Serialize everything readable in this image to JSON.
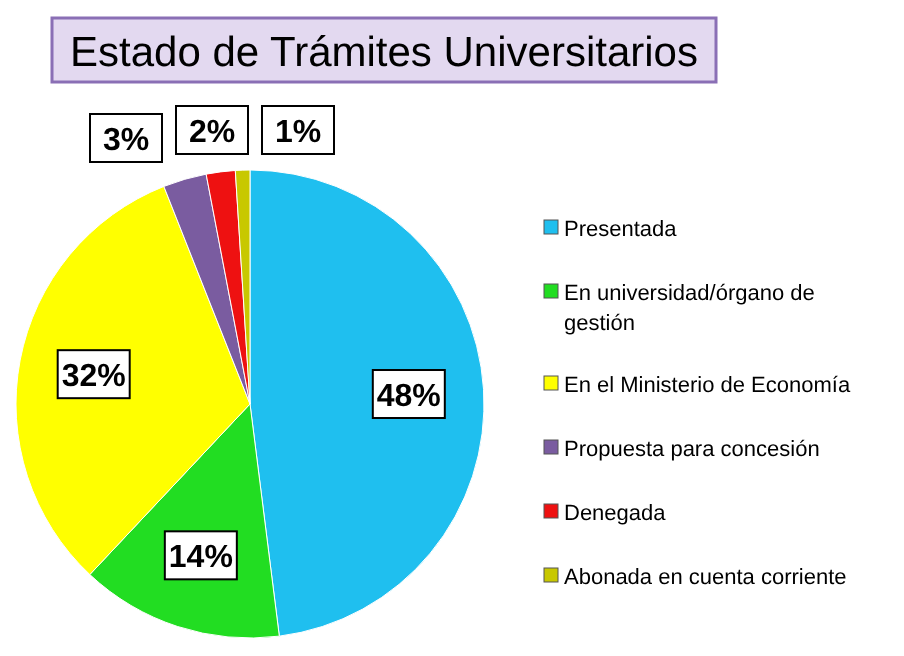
{
  "chart_data": {
    "type": "pie",
    "title": "Estado de Trámites Universitarios",
    "categories": [
      "Presentada",
      "En universidad/órgano de gestión",
      "En el Ministerio de Economía",
      "Propuesta para concesión",
      "Denegada",
      "Abonada en cuenta corriente"
    ],
    "values": [
      48,
      14,
      32,
      3,
      2,
      1
    ],
    "colors": [
      "#1fbfef",
      "#22dd22",
      "#ffff00",
      "#7a5ca0",
      "#ee1111",
      "#c8c800"
    ],
    "value_labels": [
      "48%",
      "14%",
      "32%",
      "3%",
      "2%",
      "1%"
    ],
    "legend": "right"
  }
}
